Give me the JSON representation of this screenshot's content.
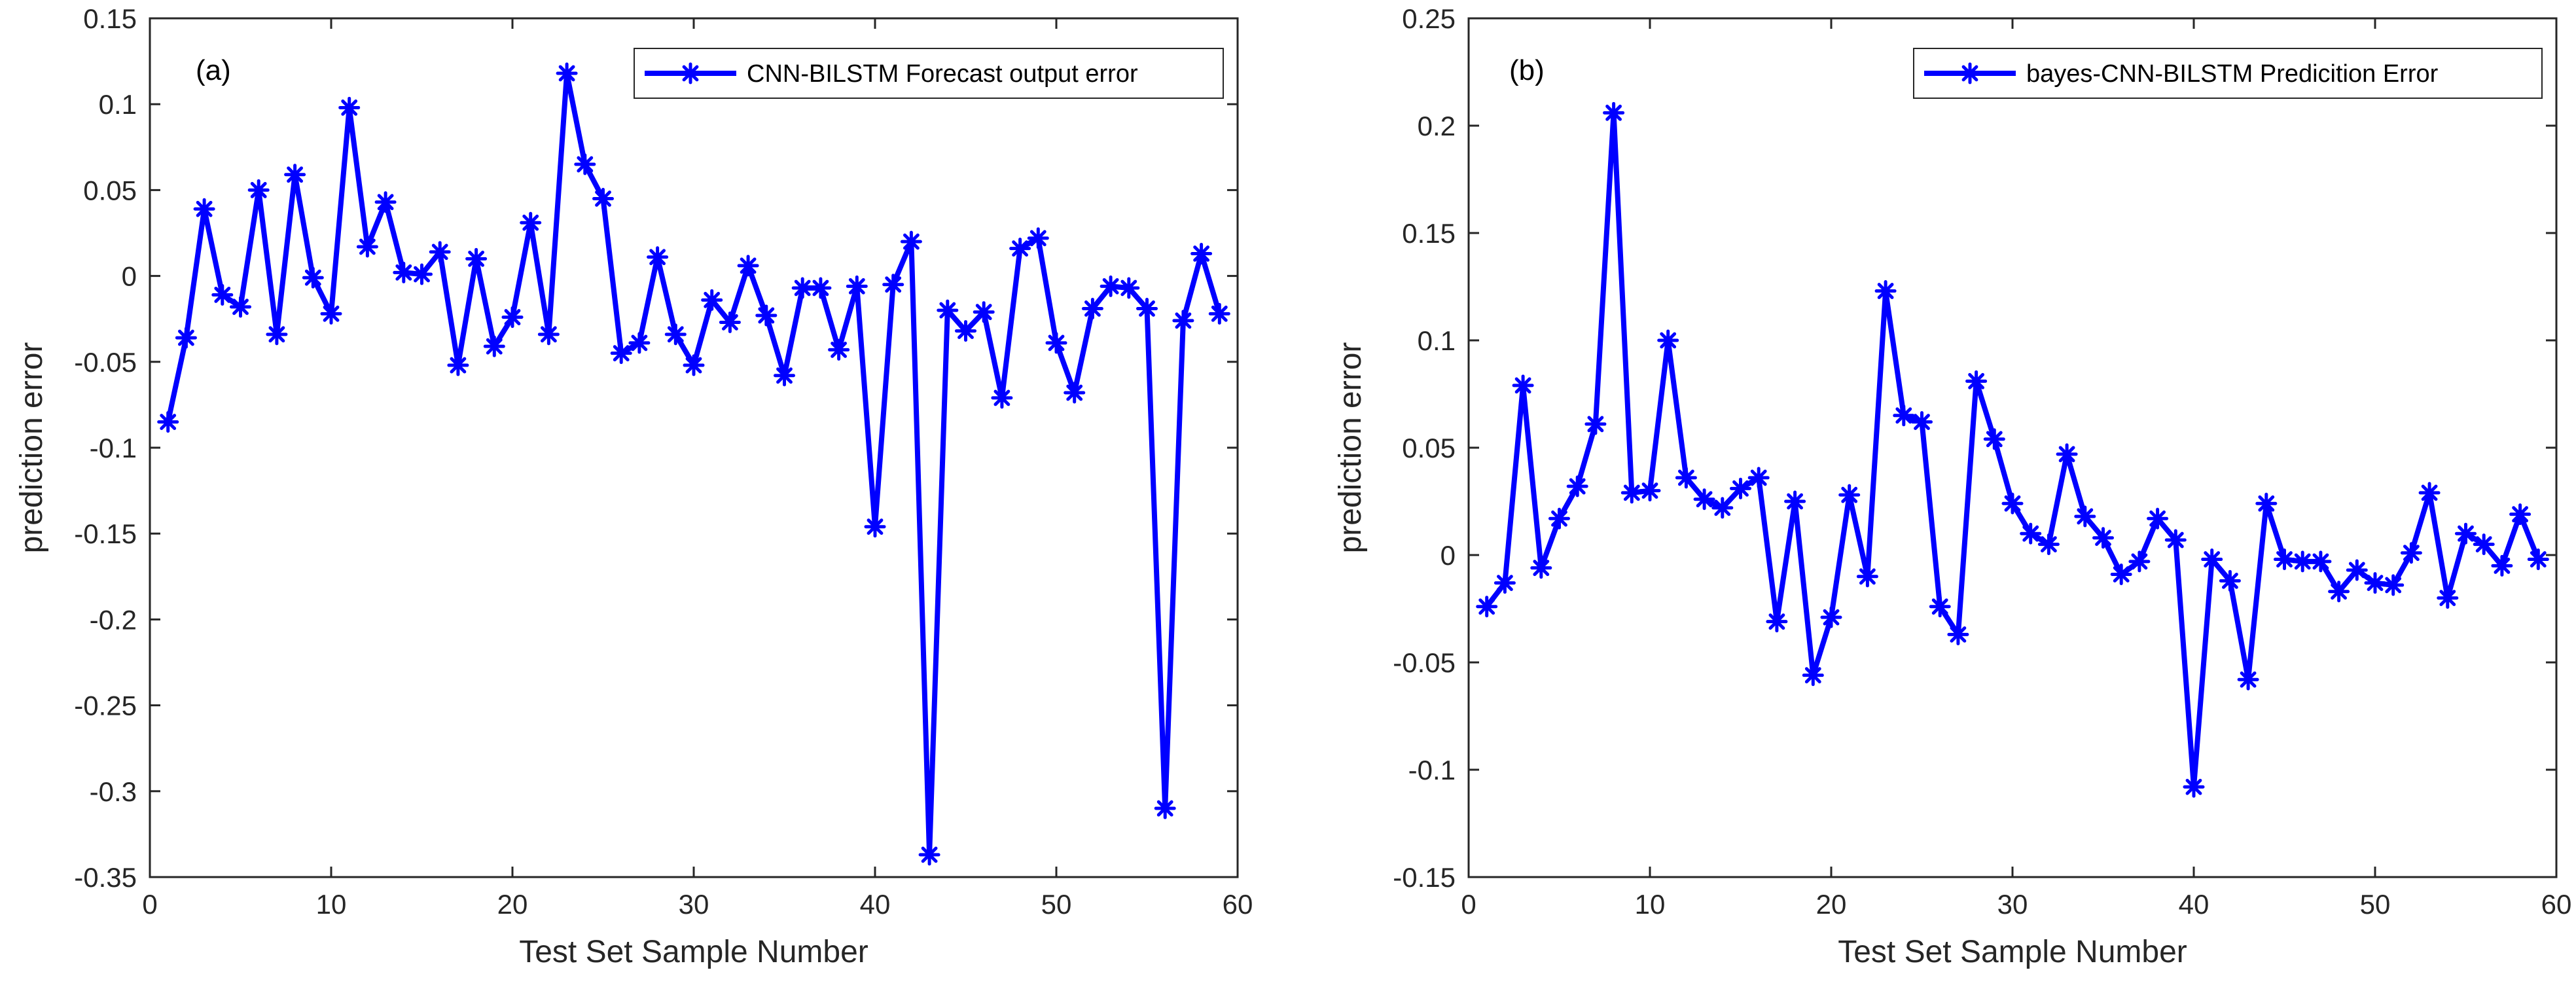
{
  "colors": {
    "series": "#0000ff",
    "axis": "#262626",
    "background": "#ffffff"
  },
  "chart_data": [
    {
      "type": "line",
      "panel_label": "(a)",
      "title": "",
      "xlabel": "Test Set Sample Number",
      "ylabel": "prediction error",
      "xlim": [
        0,
        60
      ],
      "ylim": [
        -0.35,
        0.15
      ],
      "xticks": [
        0,
        10,
        20,
        30,
        40,
        50,
        60
      ],
      "xtick_labels": [
        "0",
        "10",
        "20",
        "30",
        "40",
        "50",
        "60"
      ],
      "yticks": [
        -0.35,
        -0.3,
        -0.25,
        -0.2,
        -0.15,
        -0.1,
        -0.05,
        0,
        0.05,
        0.1,
        0.15
      ],
      "ytick_labels": [
        "-0.35",
        "-0.3",
        "-0.25",
        "-0.2",
        "-0.15",
        "-0.1",
        "-0.05",
        "0",
        "0.05",
        "0.1",
        "0.15"
      ],
      "legend_position": "top-right",
      "series": [
        {
          "name": "CNN-BILSTM Forecast output error",
          "marker": "asterisk",
          "x": [
            1,
            2,
            3,
            4,
            5,
            6,
            7,
            8,
            9,
            10,
            11,
            12,
            13,
            14,
            15,
            16,
            17,
            18,
            19,
            20,
            21,
            22,
            23,
            24,
            25,
            26,
            27,
            28,
            29,
            30,
            31,
            32,
            33,
            34,
            35,
            36,
            37,
            38,
            39,
            40,
            41,
            42,
            43,
            44,
            45,
            46,
            47,
            48,
            49,
            50,
            51,
            52,
            53,
            54,
            55,
            56,
            57,
            58,
            59
          ],
          "values": [
            -0.085,
            -0.036,
            0.039,
            -0.011,
            -0.018,
            0.05,
            -0.034,
            0.059,
            -0.001,
            -0.022,
            0.098,
            0.017,
            0.043,
            0.002,
            0.001,
            0.014,
            -0.052,
            0.01,
            -0.041,
            -0.024,
            0.031,
            -0.034,
            0.118,
            0.065,
            0.045,
            -0.045,
            -0.039,
            0.011,
            -0.034,
            -0.052,
            -0.014,
            -0.027,
            0.006,
            -0.023,
            -0.058,
            -0.007,
            -0.007,
            -0.043,
            -0.006,
            -0.146,
            -0.005,
            0.02,
            -0.337,
            -0.02,
            -0.032,
            -0.021,
            -0.071,
            0.016,
            0.022,
            -0.039,
            -0.068,
            -0.019,
            -0.006,
            -0.007,
            -0.019,
            -0.31,
            -0.026,
            0.013,
            -0.022
          ]
        }
      ]
    },
    {
      "type": "line",
      "panel_label": "(b)",
      "title": "",
      "xlabel": "Test Set Sample Number",
      "ylabel": "prediction error",
      "xlim": [
        0,
        60
      ],
      "ylim": [
        -0.15,
        0.25
      ],
      "xticks": [
        0,
        10,
        20,
        30,
        40,
        50,
        60
      ],
      "xtick_labels": [
        "0",
        "10",
        "20",
        "30",
        "40",
        "50",
        "60"
      ],
      "yticks": [
        -0.15,
        -0.1,
        -0.05,
        0,
        0.05,
        0.1,
        0.15,
        0.2,
        0.25
      ],
      "ytick_labels": [
        "-0.15",
        "-0.1",
        "-0.05",
        "0",
        "0.05",
        "0.1",
        "0.15",
        "0.2",
        "0.25"
      ],
      "legend_position": "top-right",
      "series": [
        {
          "name": "bayes-CNN-BILSTM Predicition Error",
          "marker": "asterisk",
          "x": [
            1,
            2,
            3,
            4,
            5,
            6,
            7,
            8,
            9,
            10,
            11,
            12,
            13,
            14,
            15,
            16,
            17,
            18,
            19,
            20,
            21,
            22,
            23,
            24,
            25,
            26,
            27,
            28,
            29,
            30,
            31,
            32,
            33,
            34,
            35,
            36,
            37,
            38,
            39,
            40,
            41,
            42,
            43,
            44,
            45,
            46,
            47,
            48,
            49,
            50,
            51,
            52,
            53,
            54,
            55,
            56,
            57,
            58,
            59
          ],
          "values": [
            -0.024,
            -0.013,
            0.079,
            -0.006,
            0.017,
            0.032,
            0.061,
            0.206,
            0.029,
            0.03,
            0.1,
            0.036,
            0.026,
            0.022,
            0.031,
            0.036,
            -0.031,
            0.025,
            -0.056,
            -0.029,
            0.028,
            -0.01,
            0.123,
            0.065,
            0.062,
            -0.024,
            -0.037,
            0.081,
            0.054,
            0.024,
            0.01,
            0.005,
            0.047,
            0.018,
            0.008,
            -0.009,
            -0.003,
            0.017,
            0.007,
            -0.108,
            -0.002,
            -0.012,
            -0.058,
            0.024,
            -0.002,
            -0.003,
            -0.003,
            -0.017,
            -0.007,
            -0.013,
            -0.014,
            0.001,
            0.029,
            -0.02,
            0.01,
            0.005,
            -0.005,
            0.019,
            -0.002
          ]
        }
      ]
    }
  ]
}
